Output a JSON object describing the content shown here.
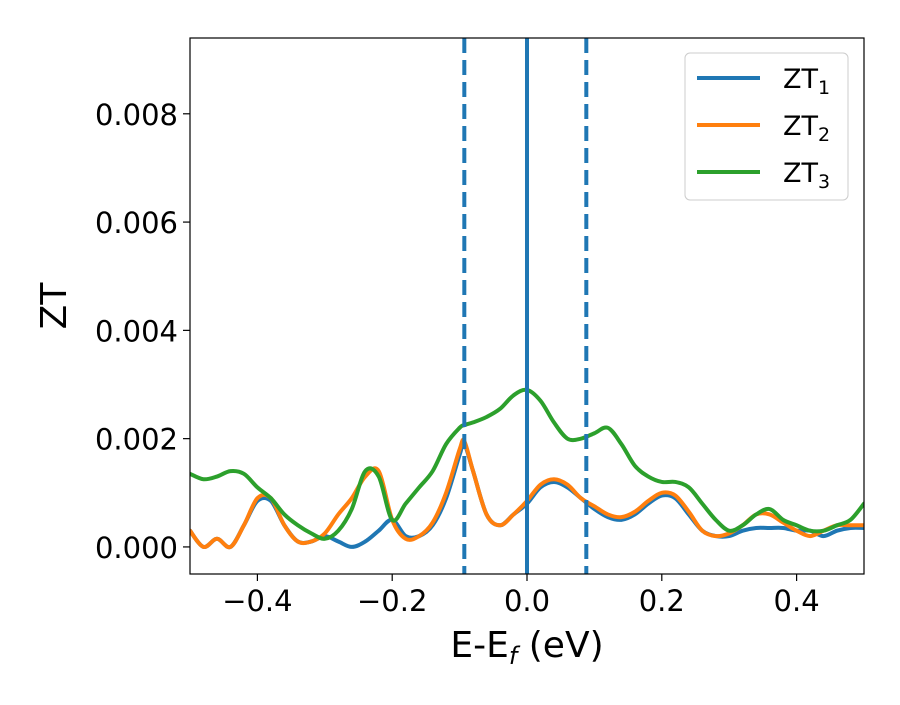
{
  "chart_data": {
    "type": "line",
    "title": "",
    "xlabel": "E-E",
    "xlabel_sub": "f",
    "xlabel_unit": " (eV)",
    "ylabel": "ZT",
    "xlim": [
      -0.5,
      0.5
    ],
    "ylim": [
      -0.0005,
      0.0094
    ],
    "grid": false,
    "legend_position": "top-right",
    "x_ticks": [
      -0.4,
      -0.2,
      0.0,
      0.2,
      0.4
    ],
    "x_tick_labels": [
      "−0.4",
      "−0.2",
      "0.0",
      "0.2",
      "0.4"
    ],
    "y_ticks": [
      0.0,
      0.002,
      0.004,
      0.006,
      0.008
    ],
    "y_tick_labels": [
      "0.000",
      "0.002",
      "0.004",
      "0.006",
      "0.008"
    ],
    "vertical_lines": [
      {
        "x": -0.093,
        "color": "#1f77b4",
        "style": "dashed"
      },
      {
        "x": 0.0,
        "color": "#000000",
        "style": "dashed"
      },
      {
        "x": 0.0,
        "color": "#1f77b4",
        "style": "solid"
      },
      {
        "x": 0.088,
        "color": "#1f77b4",
        "style": "dashed"
      }
    ],
    "series": [
      {
        "name": "ZT",
        "name_sub": "1",
        "color": "#1f77b4",
        "x": [
          -0.5,
          -0.48,
          -0.46,
          -0.44,
          -0.42,
          -0.4,
          -0.38,
          -0.36,
          -0.34,
          -0.32,
          -0.3,
          -0.28,
          -0.26,
          -0.24,
          -0.22,
          -0.2,
          -0.18,
          -0.16,
          -0.14,
          -0.12,
          -0.1,
          -0.093,
          -0.08,
          -0.06,
          -0.04,
          -0.02,
          0.0,
          0.02,
          0.04,
          0.06,
          0.08,
          0.1,
          0.12,
          0.14,
          0.16,
          0.18,
          0.2,
          0.22,
          0.24,
          0.26,
          0.28,
          0.3,
          0.32,
          0.34,
          0.36,
          0.38,
          0.4,
          0.42,
          0.44,
          0.46,
          0.48,
          0.5
        ],
        "y": [
          0.0003,
          0.0,
          0.00015,
          0.0,
          0.0004,
          0.00085,
          0.00085,
          0.0004,
          0.0001,
          0.0001,
          0.0002,
          0.0001,
          0.0,
          0.0001,
          0.0003,
          0.0005,
          0.0002,
          0.0002,
          0.0004,
          0.0009,
          0.0017,
          0.0019,
          0.0014,
          0.0006,
          0.0004,
          0.0006,
          0.0008,
          0.0011,
          0.0012,
          0.0011,
          0.0009,
          0.0007,
          0.00055,
          0.0005,
          0.0006,
          0.0008,
          0.00095,
          0.0009,
          0.0006,
          0.0003,
          0.0002,
          0.0002,
          0.0003,
          0.00035,
          0.00035,
          0.00035,
          0.0003,
          0.0003,
          0.0002,
          0.0003,
          0.00035,
          0.00035
        ]
      },
      {
        "name": "ZT",
        "name_sub": "2",
        "color": "#ff7f0e",
        "x": [
          -0.5,
          -0.48,
          -0.46,
          -0.44,
          -0.42,
          -0.4,
          -0.38,
          -0.36,
          -0.34,
          -0.32,
          -0.3,
          -0.28,
          -0.26,
          -0.24,
          -0.22,
          -0.2,
          -0.18,
          -0.16,
          -0.14,
          -0.12,
          -0.1,
          -0.093,
          -0.08,
          -0.06,
          -0.04,
          -0.02,
          0.0,
          0.02,
          0.04,
          0.06,
          0.08,
          0.1,
          0.12,
          0.14,
          0.16,
          0.18,
          0.2,
          0.22,
          0.24,
          0.26,
          0.28,
          0.3,
          0.32,
          0.34,
          0.36,
          0.38,
          0.4,
          0.42,
          0.44,
          0.46,
          0.48,
          0.5
        ],
        "y": [
          0.0003,
          0.0,
          0.00015,
          0.0,
          0.0004,
          0.0009,
          0.0009,
          0.0004,
          0.0001,
          0.0001,
          0.00025,
          0.0006,
          0.0009,
          0.0013,
          0.0014,
          0.0005,
          0.00015,
          0.0002,
          0.00045,
          0.001,
          0.0018,
          0.00195,
          0.0014,
          0.0006,
          0.0004,
          0.0006,
          0.00085,
          0.00115,
          0.00125,
          0.00115,
          0.0009,
          0.00075,
          0.0006,
          0.00055,
          0.00065,
          0.00085,
          0.001,
          0.00095,
          0.00065,
          0.0003,
          0.0002,
          0.00025,
          0.0004,
          0.0006,
          0.0006,
          0.00045,
          0.0003,
          0.0002,
          0.0003,
          0.0004,
          0.0004,
          0.0004
        ]
      },
      {
        "name": "ZT",
        "name_sub": "3",
        "color": "#2ca02c",
        "x": [
          -0.5,
          -0.48,
          -0.46,
          -0.44,
          -0.42,
          -0.4,
          -0.38,
          -0.36,
          -0.34,
          -0.32,
          -0.3,
          -0.28,
          -0.26,
          -0.24,
          -0.22,
          -0.2,
          -0.18,
          -0.16,
          -0.14,
          -0.12,
          -0.1,
          -0.093,
          -0.08,
          -0.06,
          -0.04,
          -0.02,
          0.0,
          0.02,
          0.04,
          0.06,
          0.08,
          0.1,
          0.12,
          0.14,
          0.16,
          0.18,
          0.2,
          0.22,
          0.24,
          0.26,
          0.28,
          0.3,
          0.32,
          0.34,
          0.36,
          0.38,
          0.4,
          0.42,
          0.44,
          0.46,
          0.48,
          0.5
        ],
        "y": [
          0.00135,
          0.00125,
          0.0013,
          0.0014,
          0.00135,
          0.0011,
          0.0009,
          0.0006,
          0.0004,
          0.00025,
          0.00015,
          0.0003,
          0.0007,
          0.0014,
          0.0013,
          0.0005,
          0.0008,
          0.0011,
          0.0014,
          0.0019,
          0.0022,
          0.00225,
          0.0023,
          0.0024,
          0.00255,
          0.0028,
          0.0029,
          0.0027,
          0.0023,
          0.002,
          0.002,
          0.0021,
          0.0022,
          0.0019,
          0.0015,
          0.0013,
          0.0012,
          0.0012,
          0.0011,
          0.0008,
          0.0005,
          0.0003,
          0.0004,
          0.0006,
          0.0007,
          0.0005,
          0.0004,
          0.0003,
          0.0003,
          0.0004,
          0.0005,
          0.0008
        ]
      }
    ]
  }
}
